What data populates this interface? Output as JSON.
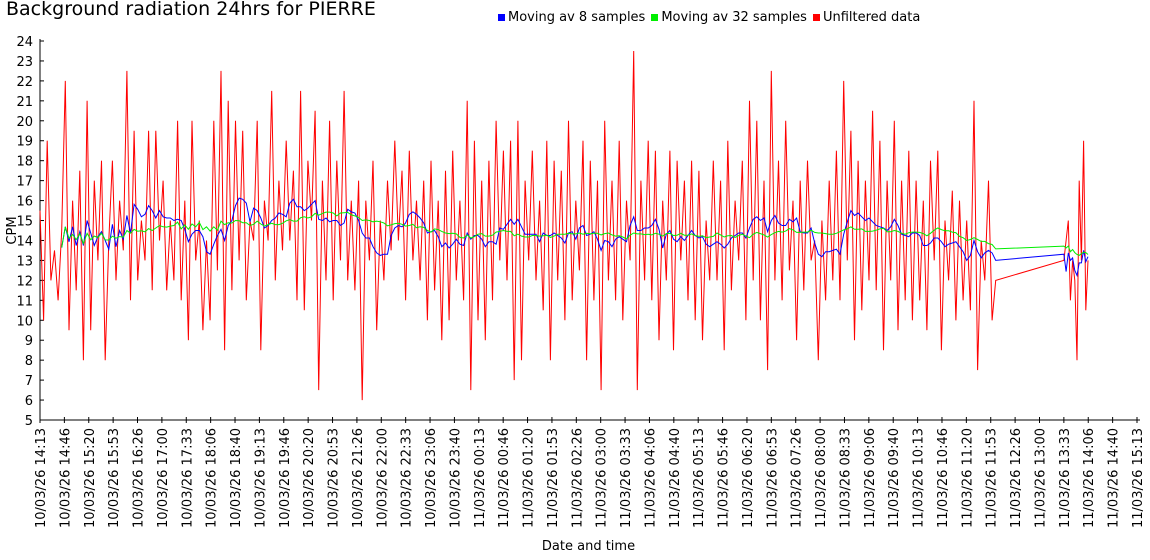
{
  "chart_data": {
    "type": "line",
    "title": "Background radiation 24hrs for PIERRE",
    "xlabel": "Date and time",
    "ylabel": "CPM",
    "ylim": [
      5,
      24
    ],
    "xlim_minutes": [
      0,
      1500
    ],
    "y_ticks": [
      5,
      6,
      7,
      8,
      9,
      10,
      11,
      12,
      13,
      14,
      15,
      16,
      17,
      18,
      19,
      20,
      21,
      22,
      23,
      24
    ],
    "x_ticks": [
      "10/03/26 14:13",
      "10/03/26 14:46",
      "10/03/26 15:20",
      "10/03/26 15:53",
      "10/03/26 16:26",
      "10/03/26 17:00",
      "10/03/26 17:33",
      "10/03/26 18:06",
      "10/03/26 18:40",
      "10/03/26 19:13",
      "10/03/26 19:46",
      "10/03/26 20:20",
      "10/03/26 20:53",
      "10/03/26 21:26",
      "10/03/26 22:00",
      "10/03/26 22:33",
      "10/03/26 23:06",
      "10/03/26 23:40",
      "11/03/26 00:13",
      "11/03/26 00:46",
      "11/03/26 01:20",
      "11/03/26 01:53",
      "11/03/26 02:26",
      "11/03/26 03:00",
      "11/03/26 03:33",
      "11/03/26 04:06",
      "11/03/26 04:40",
      "11/03/26 05:13",
      "11/03/26 05:46",
      "11/03/26 06:20",
      "11/03/26 06:53",
      "11/03/26 07:26",
      "11/03/26 08:00",
      "11/03/26 08:33",
      "11/03/26 09:06",
      "11/03/26 09:40",
      "11/03/26 10:13",
      "11/03/26 10:46",
      "11/03/26 11:20",
      "11/03/26 11:53",
      "11/03/26 12:26",
      "11/03/26 13:00",
      "11/03/26 13:33",
      "11/03/26 14:06",
      "11/03/26 14:40",
      "11/03/26 15:13"
    ],
    "legend": "top",
    "series": [
      {
        "name": "Moving av 8 samples",
        "color": "#0000ff",
        "moving_average_of": "Unfiltered data",
        "window": 8
      },
      {
        "name": "Moving av 32 samples",
        "color": "#00ee00",
        "moving_average_of": "Unfiltered data",
        "window": 32
      },
      {
        "name": "Unfiltered data",
        "color": "#ff0000",
        "segments": [
          {
            "start_minute": 0,
            "step_minutes": 4.95,
            "values": [
              15.5,
              10,
              19,
              12,
              13.5,
              11,
              14.5,
              22,
              9.5,
              16,
              11.5,
              17.5,
              8,
              21,
              9.5,
              17,
              13,
              18,
              8,
              14,
              18,
              12,
              16,
              13.5,
              22.5,
              11,
              19.5,
              12,
              15,
              13,
              19.5,
              11.5,
              19.5,
              14,
              17,
              11.5,
              15,
              12,
              20,
              11,
              16,
              9,
              20,
              13,
              15,
              9.5,
              14,
              10,
              20,
              12.5,
              22.5,
              8.5,
              21,
              11.5,
              20,
              13,
              19.5,
              11,
              15,
              14,
              20,
              8.5,
              16,
              14,
              21.5,
              12,
              17,
              13.5,
              19,
              14,
              17.5,
              11,
              21.5,
              10.5,
              18,
              15,
              20.5,
              6.5,
              17,
              12,
              20,
              11,
              18,
              13,
              21.5,
              12,
              16,
              11.5,
              17,
              6,
              16,
              13,
              18,
              9.5,
              15,
              12,
              17,
              13.5,
              19,
              14,
              17.5,
              11,
              18.5,
              13,
              16,
              12,
              17,
              10,
              18,
              11.5,
              16,
              9,
              17.5,
              10,
              18.5,
              12,
              16,
              11,
              21,
              6.5,
              19,
              10,
              17,
              9,
              18,
              11,
              20,
              13,
              18.5,
              12,
              19,
              7,
              20,
              8,
              17,
              13,
              18.5,
              12,
              16,
              10.5,
              19,
              8,
              18,
              12,
              17.5,
              10,
              20,
              11,
              16,
              12.5,
              19,
              8,
              18,
              11,
              17,
              6.5,
              20,
              12,
              17,
              11,
              19,
              10,
              16,
              13,
              23.5,
              6.5,
              17,
              12,
              19,
              11,
              18.5,
              9,
              16,
              12,
              18.5,
              8.5,
              18,
              13,
              17,
              11,
              18,
              10,
              17.5,
              9,
              15,
              12,
              18,
              12,
              17,
              8.5,
              19,
              11.5,
              16,
              13,
              18,
              10,
              21,
              12,
              20,
              10,
              17,
              7.5,
              22.5,
              12,
              18,
              11,
              20,
              12.5,
              16,
              9,
              17,
              11.5,
              18,
              13,
              14,
              8,
              15,
              11,
              17,
              12,
              18.5,
              11,
              22,
              13,
              19.5,
              9,
              18,
              10.5,
              17,
              12,
              20.5,
              11.5,
              19,
              8.5,
              17,
              12,
              20,
              9.5,
              17,
              11,
              18.5,
              10,
              17,
              11,
              16,
              9.5,
              18,
              13,
              18.5,
              8.5,
              15,
              12,
              16.5,
              10,
              16,
              11,
              15,
              10.5,
              21,
              7.5,
              14,
              12,
              17,
              10,
              12
            ]
          },
          {
            "start_minute": 1400,
            "step_minutes": 3,
            "values": [
              13,
              14,
              15,
              11,
              13,
              12,
              8,
              17,
              13,
              19,
              10.5,
              13
            ]
          }
        ]
      }
    ]
  }
}
